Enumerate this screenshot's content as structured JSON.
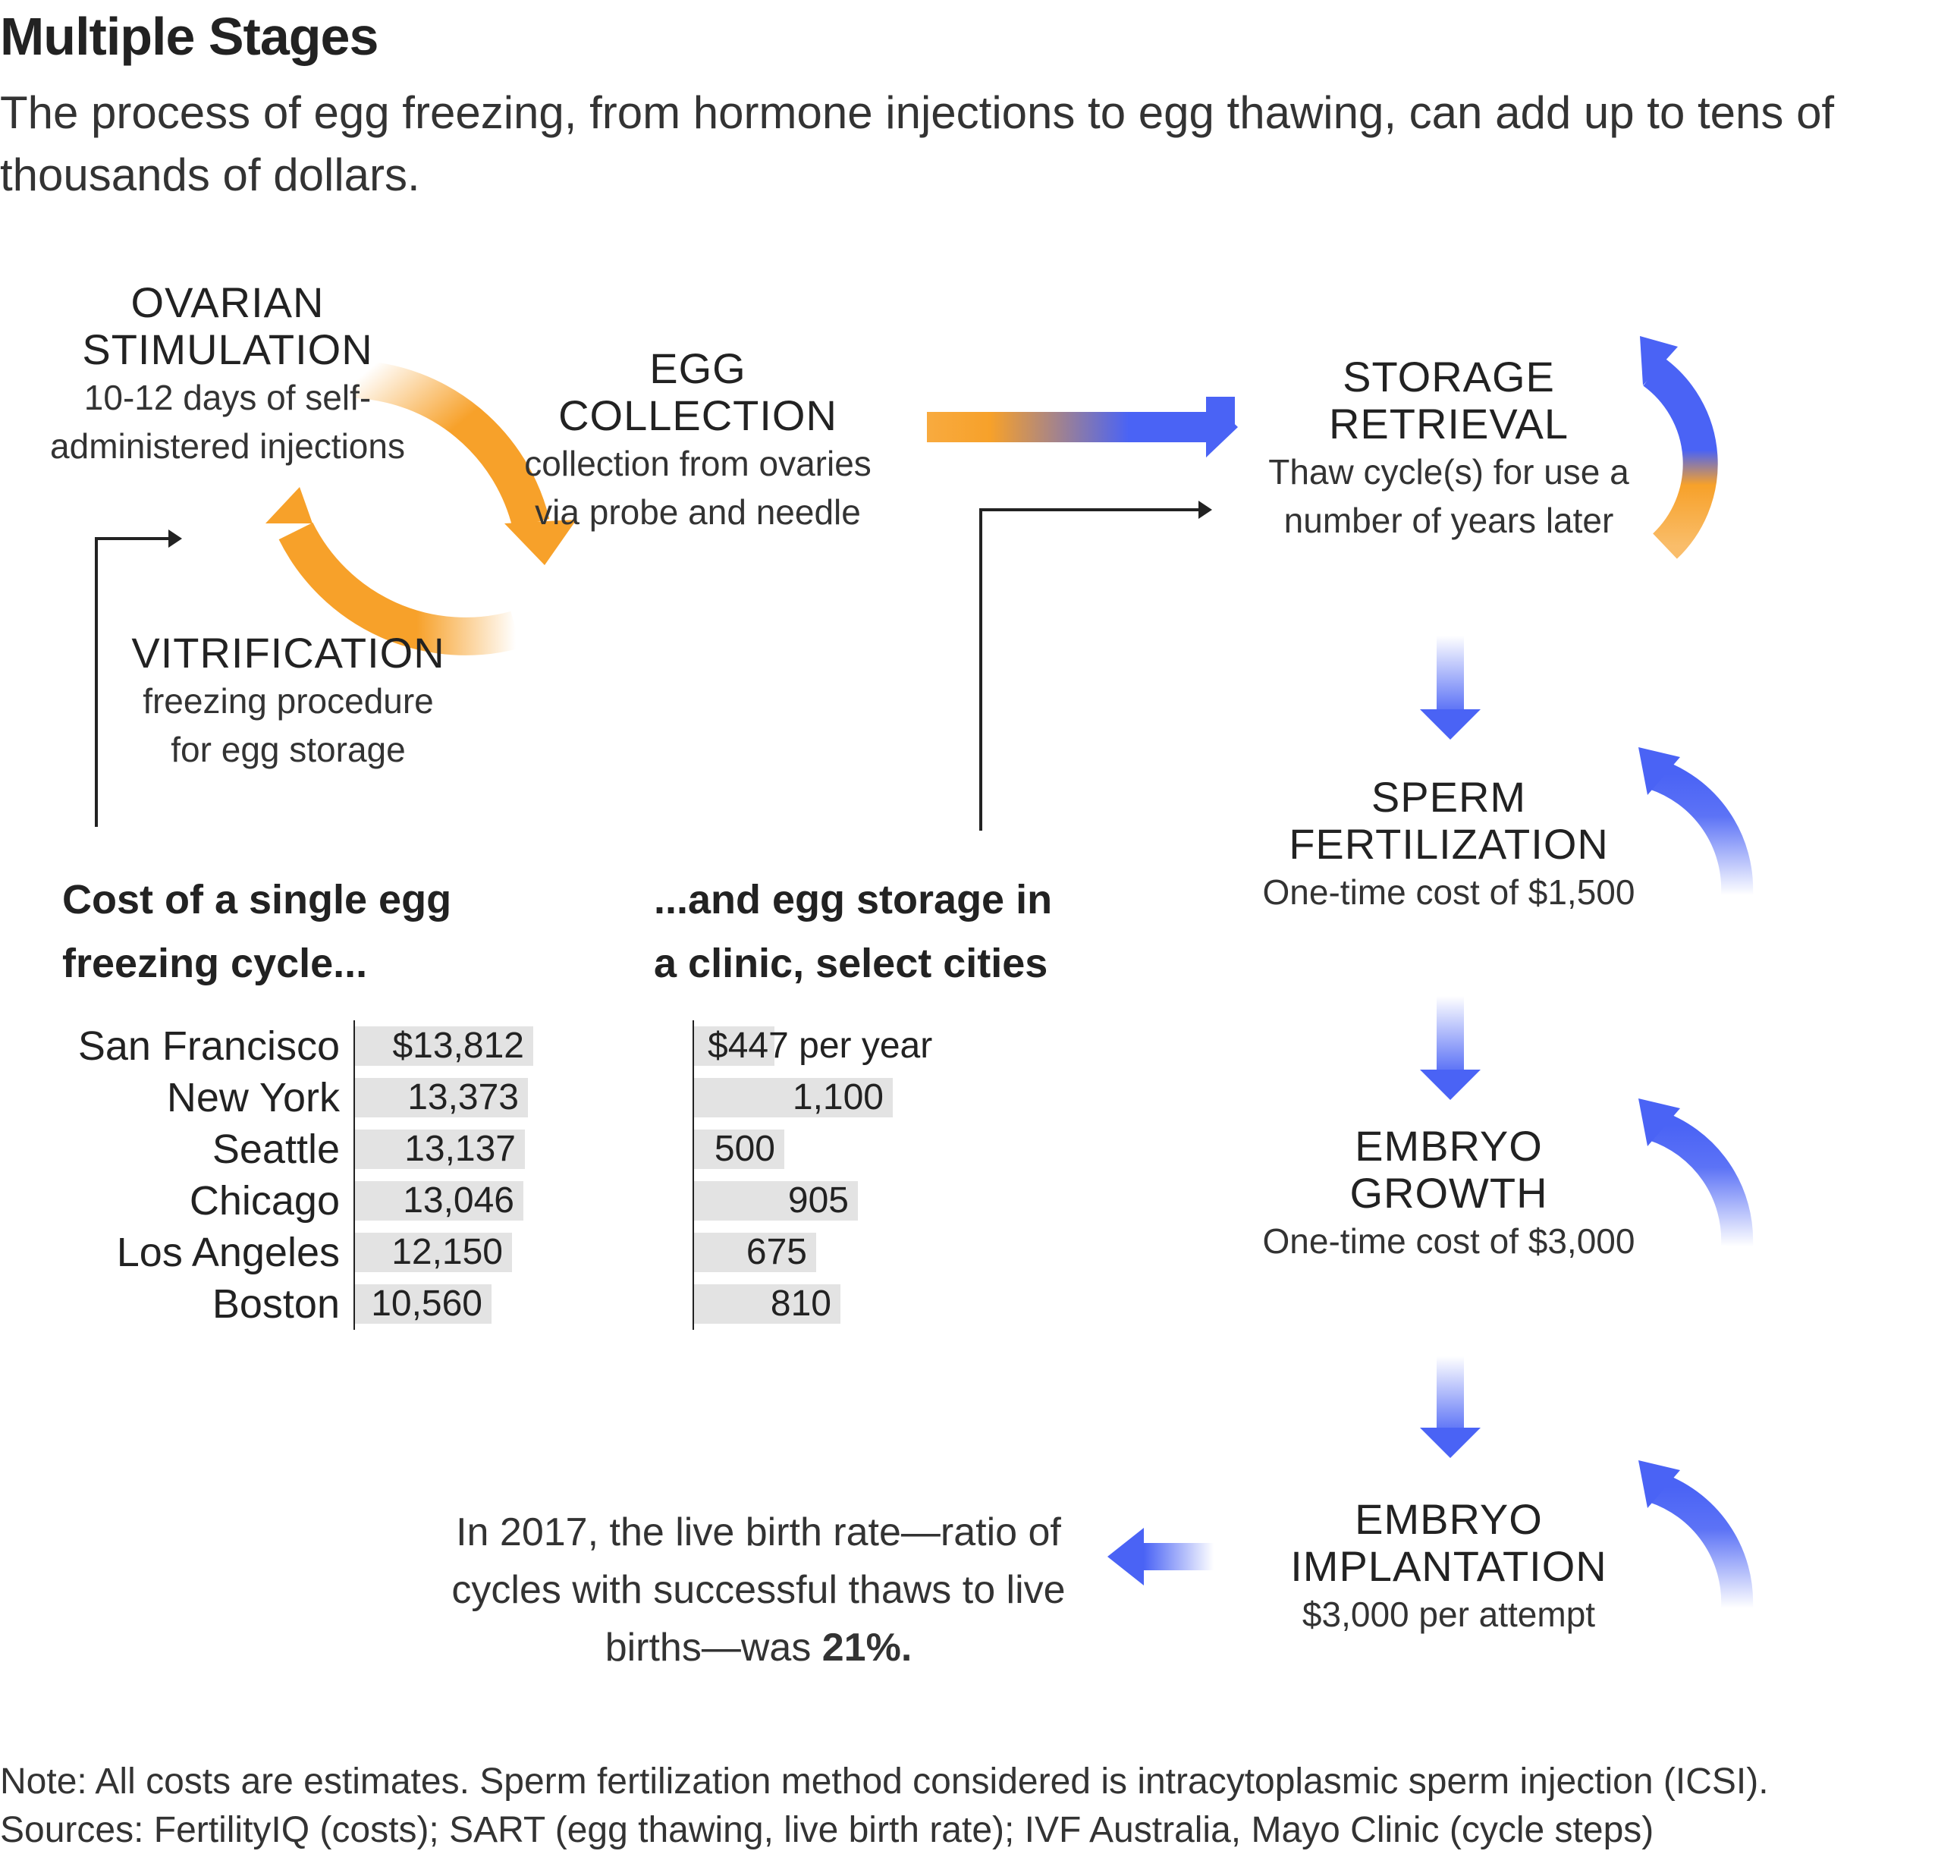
{
  "header": {
    "title": "Multiple Stages",
    "subtitle": "The process of egg freezing, from hormone injections to egg thawing, can add up to tens of thousands of dollars."
  },
  "stages": {
    "ovarian": {
      "name1": "OVARIAN",
      "name2": "STIMULATION",
      "desc1": "10-12 days of self-",
      "desc2": "administered injections"
    },
    "egg_collection": {
      "name1": "EGG",
      "name2": "COLLECTION",
      "desc1": "collection from ovaries",
      "desc2": "via probe and needle"
    },
    "vitrification": {
      "name1": "VITRIFICATION",
      "desc1": "freezing procedure",
      "desc2": "for egg storage"
    },
    "storage": {
      "name1": "STORAGE",
      "name2": "RETRIEVAL",
      "desc1": "Thaw cycle(s) for use a",
      "desc2": "number of years later"
    },
    "sperm": {
      "name1": "SPERM",
      "name2": "FERTILIZATION",
      "desc1": "One-time cost of $1,500"
    },
    "growth": {
      "name1": "EMBRYO",
      "name2": "GROWTH",
      "desc1": "One-time cost of $3,000"
    },
    "implantation": {
      "name1": "EMBRYO",
      "name2": "IMPLANTATION",
      "desc1": "$3,000 per attempt"
    }
  },
  "result": {
    "line1": "In 2017, the live birth rate—ratio of",
    "line2": "cycles with successful thaws to live",
    "line3_prefix": "births—was ",
    "line3_bold": "21%."
  },
  "colors": {
    "orange": "#f7a12a",
    "blue": "#4a63f5",
    "bar": "#e3e3e3"
  },
  "chart_data": [
    {
      "type": "bar",
      "title": "Cost of a single egg freezing cycle...",
      "categories": [
        "San Francisco",
        "New York",
        "Seattle",
        "Chicago",
        "Los Angeles",
        "Boston"
      ],
      "values": [
        13812,
        13373,
        13137,
        13046,
        12150,
        10560
      ],
      "labels": [
        "$13,812",
        "13,373",
        "13,137",
        "13,046",
        "12,150",
        "10,560"
      ]
    },
    {
      "type": "bar",
      "title": "...and egg storage in a clinic, select cities",
      "categories": [
        "San Francisco",
        "New York",
        "Seattle",
        "Chicago",
        "Los Angeles",
        "Boston"
      ],
      "values": [
        447,
        1100,
        500,
        905,
        675,
        810
      ],
      "labels": [
        "$447",
        "1,100",
        "500",
        "905",
        "675",
        "810"
      ],
      "unit_suffix": " per year"
    }
  ],
  "chart_titles": {
    "cycle_line1": "Cost of a single egg",
    "cycle_line2": "freezing cycle...",
    "storage_line1": "...and egg storage in",
    "storage_line2": "a clinic, select cities"
  },
  "footer": {
    "note": "Note: All costs are estimates. Sperm fertilization method considered is intracytoplasmic sperm injection (ICSI).",
    "sources": "Sources: FertilityIQ (costs); SART (egg thawing, live birth rate); IVF Australia, Mayo Clinic (cycle steps)"
  }
}
